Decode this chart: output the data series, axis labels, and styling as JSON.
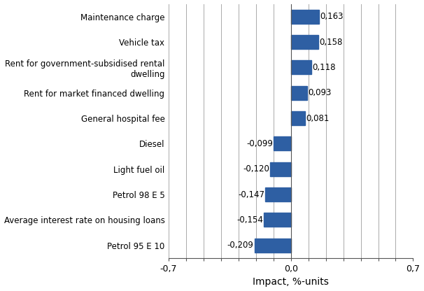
{
  "categories": [
    "Petrol 95 E 10",
    "Average interest rate on housing loans",
    "Petrol 98 E 5",
    "Light fuel oil",
    "Diesel",
    "General hospital fee",
    "Rent for market financed dwelling",
    "Rent for government-subsidised rental\ndwelling",
    "Vehicle tax",
    "Maintenance charge"
  ],
  "values": [
    -0.209,
    -0.154,
    -0.147,
    -0.12,
    -0.099,
    0.081,
    0.093,
    0.118,
    0.158,
    0.163
  ],
  "labels": [
    "-0,209",
    "-0,154",
    "-0,147",
    "-0,120",
    "-0,099",
    "0,081",
    "0,093",
    "0,118",
    "0,158",
    "0,163"
  ],
  "bar_color": "#2E5FA3",
  "xlabel": "Impact, %-units",
  "xlim": [
    -0.7,
    0.7
  ],
  "xticks_grid": [
    -0.7,
    -0.6,
    -0.5,
    -0.4,
    -0.3,
    -0.2,
    -0.1,
    0.0,
    0.1,
    0.2,
    0.3,
    0.4,
    0.5,
    0.6,
    0.7
  ],
  "xticks_labeled": [
    -0.7,
    0.0,
    0.7
  ],
  "xtick_labels": [
    "-0,7",
    "0,0",
    "0,7"
  ],
  "background_color": "#ffffff",
  "grid_color": "#aaaaaa",
  "label_fontsize": 8.5,
  "tick_fontsize": 9,
  "xlabel_fontsize": 10,
  "bar_height": 0.55
}
